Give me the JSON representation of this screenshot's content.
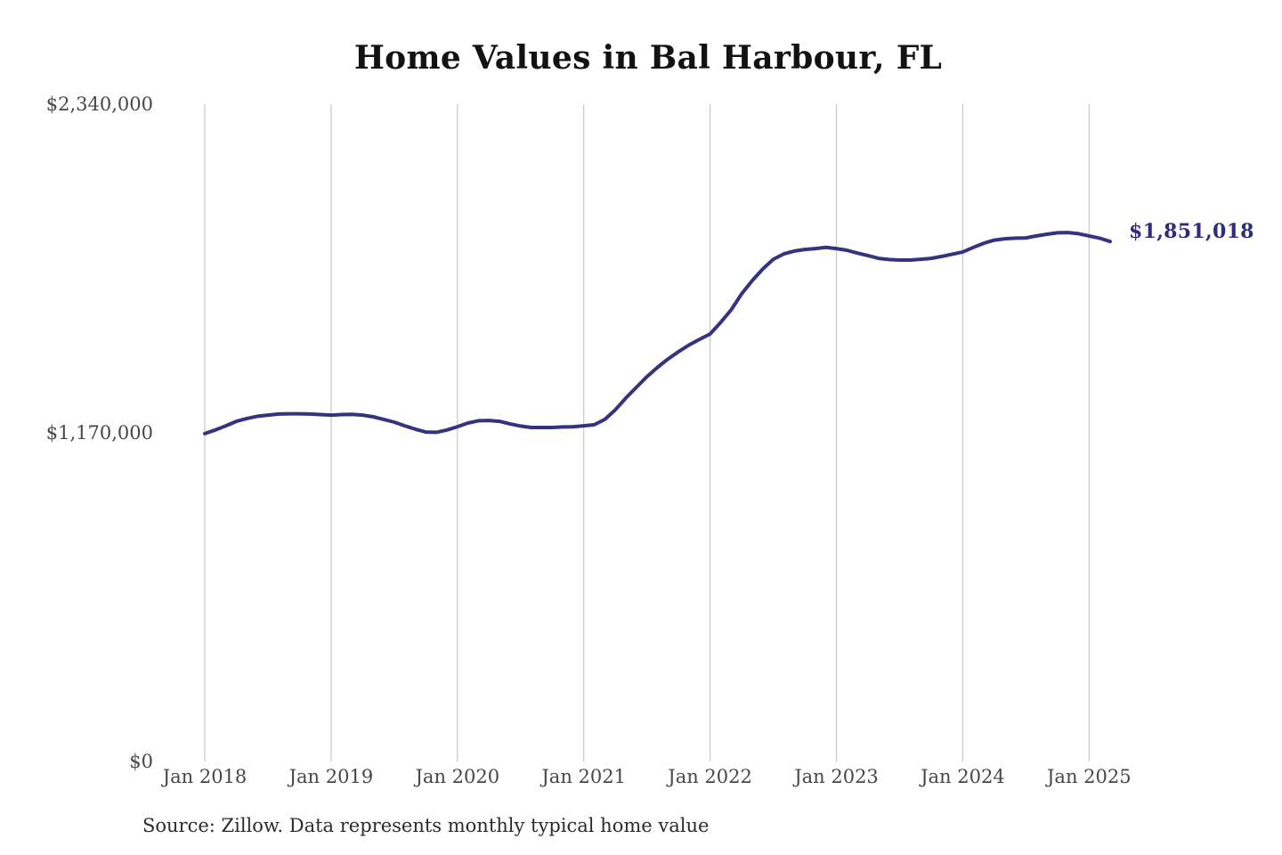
{
  "title": "Home Values in Bal Harbour, FL",
  "source_note": "Source: Zillow. Data represents monthly typical home value",
  "current_value_label": "$1,851,018",
  "colors": {
    "background": "#ffffff",
    "line": "#34337f",
    "end_label": "#2d2c7f",
    "grid": "#c7c7c7",
    "tick_text": "#474747",
    "title_text": "#121212",
    "source_text": "#2b2b2b"
  },
  "y_axis": {
    "tick_labels": [
      "$2,340,000",
      "$1,170,000",
      "$0"
    ],
    "tick_values": [
      2340000,
      1170000,
      0
    ]
  },
  "x_axis": {
    "tick_labels": [
      "Jan 2018",
      "Jan 2019",
      "Jan 2020",
      "Jan 2021",
      "Jan 2022",
      "Jan 2023",
      "Jan 2024",
      "Jan 2025"
    ]
  },
  "chart_data": {
    "type": "line",
    "title": "Home Values in Bal Harbour, FL",
    "series_name": "Monthly typical home value",
    "frequency": "monthly",
    "x_start": "Jan 2018",
    "x_end": "Mar 2025",
    "ylim": [
      0,
      2340000
    ],
    "y_ticks": [
      0,
      1170000,
      2340000
    ],
    "x_tick_labels": [
      "Jan 2018",
      "Jan 2019",
      "Jan 2020",
      "Jan 2021",
      "Jan 2022",
      "Jan 2023",
      "Jan 2024",
      "Jan 2025"
    ],
    "grid": "vertical-only",
    "legend": "none",
    "final_value": 1851018,
    "final_value_label": "$1,851,018",
    "values": [
      1167000,
      1180000,
      1195000,
      1211000,
      1221000,
      1229000,
      1233000,
      1237000,
      1238000,
      1238000,
      1237000,
      1235000,
      1233000,
      1235000,
      1236000,
      1233000,
      1227000,
      1218000,
      1208000,
      1195000,
      1183000,
      1173000,
      1172000,
      1180000,
      1192000,
      1205000,
      1213000,
      1214000,
      1211000,
      1202000,
      1194000,
      1189000,
      1189000,
      1189000,
      1191000,
      1192000,
      1195000,
      1199000,
      1218000,
      1252000,
      1294000,
      1332000,
      1370000,
      1403000,
      1433000,
      1459000,
      1483000,
      1503000,
      1522000,
      1563000,
      1608000,
      1665000,
      1712000,
      1753000,
      1788000,
      1807000,
      1817000,
      1823000,
      1826000,
      1830000,
      1826000,
      1820000,
      1810000,
      1801000,
      1791000,
      1787000,
      1785000,
      1785000,
      1788000,
      1791000,
      1798000,
      1806000,
      1814000,
      1830000,
      1845000,
      1856000,
      1861000,
      1863000,
      1864000,
      1871000,
      1877000,
      1882000,
      1883000,
      1879000,
      1871000,
      1863000,
      1851018
    ]
  }
}
